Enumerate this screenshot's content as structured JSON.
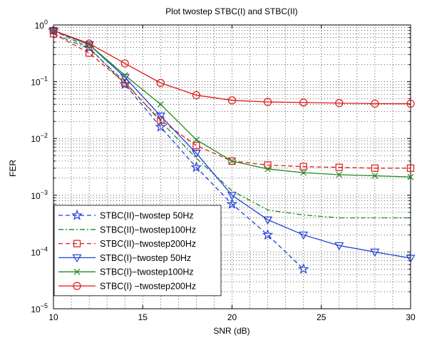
{
  "chart_data": {
    "type": "line",
    "title": "Plot twostep STBC(I) and STBC(II)",
    "xlabel": "SNR (dB)",
    "ylabel": "FER",
    "xlim": [
      10,
      30
    ],
    "ylim": [
      1e-05,
      1
    ],
    "yscale": "log",
    "grid": true,
    "legend_position": "bottom-left",
    "x_ticks": [
      10,
      15,
      20,
      25,
      30
    ],
    "y_ticks": [
      {
        "value": 1,
        "base": "10",
        "exp": "0"
      },
      {
        "value": 0.1,
        "base": "10",
        "exp": "−1"
      },
      {
        "value": 0.01,
        "base": "10",
        "exp": "−2"
      },
      {
        "value": 0.001,
        "base": "10",
        "exp": "−3"
      },
      {
        "value": 0.0001,
        "base": "10",
        "exp": "−4"
      },
      {
        "value": 1e-05,
        "base": "10",
        "exp": "−5"
      }
    ],
    "series": [
      {
        "name": "STBC(II)−twostep 50Hz",
        "color": "#1f3fd8",
        "dash": "dash",
        "marker": "star",
        "x": [
          10,
          12,
          14,
          16,
          18,
          20,
          22,
          24
        ],
        "y": [
          0.8,
          0.4,
          0.09,
          0.016,
          0.0031,
          0.0007,
          0.0002,
          5e-05
        ],
        "marker_x": [
          10,
          12,
          14,
          16,
          18,
          20,
          22,
          24
        ]
      },
      {
        "name": "STBC(II)−twostep100Hz",
        "color": "#1e8a1e",
        "dash": "dashdot",
        "marker": "none",
        "x": [
          10,
          12,
          14,
          16,
          18,
          20,
          22,
          24,
          26,
          28,
          30
        ],
        "y": [
          0.7,
          0.38,
          0.1,
          0.02,
          0.0045,
          0.0012,
          0.00055,
          0.00045,
          0.0004,
          0.0004,
          0.0004
        ],
        "marker_x": []
      },
      {
        "name": "STBC(II)−twostep200Hz",
        "color": "#e01818",
        "dash": "dash",
        "marker": "square",
        "x": [
          10,
          12,
          14,
          16,
          18,
          20,
          22,
          24,
          26,
          28,
          30
        ],
        "y": [
          0.7,
          0.32,
          0.095,
          0.021,
          0.0075,
          0.004,
          0.0034,
          0.0032,
          0.0031,
          0.003,
          0.003
        ],
        "marker_x": [
          10,
          12,
          14,
          16,
          18,
          20,
          22,
          24,
          26,
          28,
          30
        ]
      },
      {
        "name": "STBC(I)−twostep 50Hz",
        "color": "#1f3fd8",
        "dash": "solid",
        "marker": "triangle-down",
        "x": [
          10,
          12,
          14,
          16,
          18,
          20,
          22,
          24,
          26,
          28,
          30
        ],
        "y": [
          0.8,
          0.45,
          0.12,
          0.025,
          0.0055,
          0.001,
          0.00037,
          0.0002,
          0.00013,
          0.0001,
          7.8e-05
        ],
        "marker_x": [
          10,
          12,
          14,
          16,
          18,
          20,
          22,
          24,
          26,
          28,
          30
        ]
      },
      {
        "name": "STBC(I)−twostep100Hz",
        "color": "#1e8a1e",
        "dash": "solid",
        "marker": "x",
        "x": [
          10,
          12,
          14,
          16,
          18,
          20,
          22,
          24,
          26,
          28,
          30
        ],
        "y": [
          0.8,
          0.45,
          0.13,
          0.04,
          0.0095,
          0.004,
          0.0029,
          0.0025,
          0.0023,
          0.0022,
          0.0021
        ],
        "marker_x": [
          10,
          12,
          14,
          16,
          18,
          20,
          22,
          24,
          26,
          28,
          30
        ]
      },
      {
        "name": "STBC(I) −twostep200Hz",
        "color": "#e01818",
        "dash": "solid",
        "marker": "circle",
        "x": [
          10,
          12,
          14,
          16,
          18,
          20,
          22,
          24,
          26,
          28,
          30
        ],
        "y": [
          0.8,
          0.47,
          0.21,
          0.095,
          0.058,
          0.047,
          0.044,
          0.043,
          0.042,
          0.041,
          0.041
        ],
        "marker_x": [
          10,
          12,
          14,
          16,
          18,
          20,
          22,
          24,
          26,
          28,
          30
        ]
      }
    ]
  }
}
